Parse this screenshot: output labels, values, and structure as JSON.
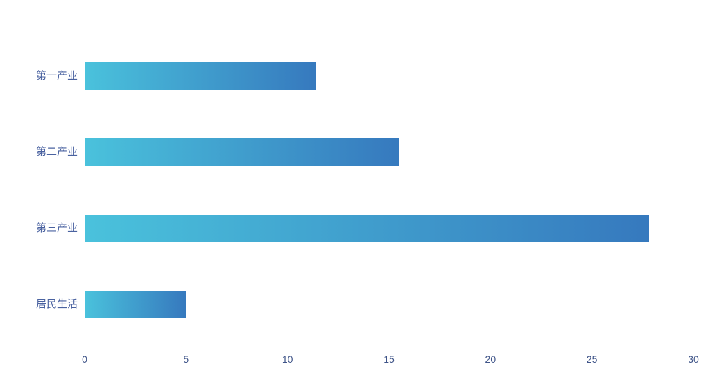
{
  "chart_data": {
    "type": "bar",
    "orientation": "horizontal",
    "title": "",
    "xlabel": "",
    "ylabel": "",
    "categories": [
      "第一产业",
      "第二产业",
      "第三产业",
      "居民生活"
    ],
    "values": [
      11.4,
      15.5,
      27.8,
      5
    ],
    "xlim": [
      0,
      30
    ],
    "x_ticks": [
      "0",
      "5",
      "10",
      "15",
      "20",
      "25",
      "30"
    ],
    "grid": false,
    "legend": null,
    "colors": {
      "bar_gradient_start": "#4ac2dc",
      "bar_gradient_end": "#3679be",
      "category_label": "#4a62a0",
      "tick_label": "#3f5488",
      "axis_line": "#e4e8f1",
      "background": "#ffffff"
    }
  }
}
